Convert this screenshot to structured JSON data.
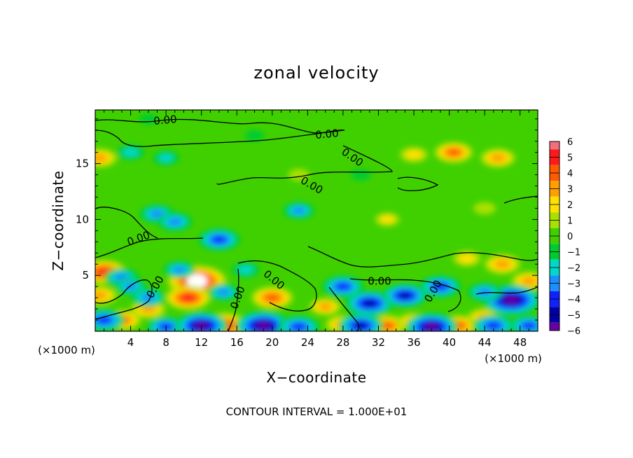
{
  "chart_data": {
    "type": "heatmap",
    "title": "zonal velocity",
    "xlabel": "X−coordinate",
    "ylabel": "Z−coordinate",
    "x_unit_left": "(×1000 m)",
    "x_unit_right": "(×1000 m)",
    "xlim": [
      0,
      50
    ],
    "ylim": [
      0,
      19.8
    ],
    "xticks": [
      4,
      8,
      12,
      16,
      20,
      24,
      28,
      32,
      36,
      40,
      44,
      48
    ],
    "yticks": [
      5,
      10,
      15
    ],
    "colorbar": {
      "ticks": [
        6,
        5,
        4,
        3,
        2,
        1,
        0,
        -1,
        -2,
        -3,
        -4,
        -5,
        -6
      ],
      "tick_labels": [
        "6",
        "5",
        "4",
        "3",
        "2",
        "1",
        "0",
        "−1",
        "−2",
        "−3",
        "−4",
        "−5",
        "−6"
      ],
      "range": [
        -6,
        6
      ]
    },
    "contour_label": "0.00",
    "footer": "CONTOUR INTERVAL = 1.000E+01",
    "features": [
      {
        "x": 11.5,
        "z": 4.5,
        "u": 6.5
      },
      {
        "x": 10.5,
        "z": 3.0,
        "u": 4.5
      },
      {
        "x": 14.5,
        "z": 0.5,
        "u": 5.0
      },
      {
        "x": 20.0,
        "z": 3.0,
        "u": 4.0
      },
      {
        "x": 6.0,
        "z": 2.0,
        "u": 3.0
      },
      {
        "x": 1.0,
        "z": 5.3,
        "u": 4.5
      },
      {
        "x": 0.5,
        "z": 3.2,
        "u": 3.0
      },
      {
        "x": 3.0,
        "z": 1.0,
        "u": 3.5
      },
      {
        "x": 20.0,
        "z": 0.3,
        "u": 3.5
      },
      {
        "x": 26.0,
        "z": 2.2,
        "u": 2.5
      },
      {
        "x": 28.0,
        "z": 0.6,
        "u": 3.0
      },
      {
        "x": 33.0,
        "z": 0.5,
        "u": 3.5
      },
      {
        "x": 36.0,
        "z": 0.8,
        "u": 3.0
      },
      {
        "x": 41.0,
        "z": 0.5,
        "u": 3.5
      },
      {
        "x": 44.0,
        "z": 1.2,
        "u": 3.0
      },
      {
        "x": 46.0,
        "z": 6.0,
        "u": 3.2
      },
      {
        "x": 49.0,
        "z": 4.5,
        "u": 3.0
      },
      {
        "x": 42.0,
        "z": 6.5,
        "u": 2.0
      },
      {
        "x": 40.5,
        "z": 16.0,
        "u": 3.5
      },
      {
        "x": 45.5,
        "z": 15.5,
        "u": 3.0
      },
      {
        "x": 36.0,
        "z": 15.8,
        "u": 2.0
      },
      {
        "x": 0.5,
        "z": 15.5,
        "u": 3.0
      },
      {
        "x": 33.0,
        "z": 10.0,
        "u": 1.5
      },
      {
        "x": 44.0,
        "z": 11.0,
        "u": 1.2
      },
      {
        "x": 23.0,
        "z": 14.0,
        "u": 1.0
      },
      {
        "x": 7.0,
        "z": 10.5,
        "u": -3.0
      },
      {
        "x": 9.0,
        "z": 9.8,
        "u": -3.0
      },
      {
        "x": 14.0,
        "z": 8.2,
        "u": -4.0
      },
      {
        "x": 23.0,
        "z": 10.8,
        "u": -2.5
      },
      {
        "x": 4.0,
        "z": 16.0,
        "u": -2.0
      },
      {
        "x": 8.0,
        "z": 15.5,
        "u": -1.8
      },
      {
        "x": 3.0,
        "z": 4.8,
        "u": -3.0
      },
      {
        "x": 4.0,
        "z": 4.0,
        "u": -2.5
      },
      {
        "x": 6.0,
        "z": 3.0,
        "u": -3.0
      },
      {
        "x": 9.5,
        "z": 5.5,
        "u": -2.5
      },
      {
        "x": 14.5,
        "z": 3.5,
        "u": -2.5
      },
      {
        "x": 17.0,
        "z": 5.5,
        "u": -2.0
      },
      {
        "x": 28.0,
        "z": 4.0,
        "u": -4.0
      },
      {
        "x": 31.0,
        "z": 2.5,
        "u": -5.0
      },
      {
        "x": 35.0,
        "z": 3.2,
        "u": -4.5
      },
      {
        "x": 39.0,
        "z": 4.0,
        "u": -4.0
      },
      {
        "x": 47.0,
        "z": 2.8,
        "u": -6.5
      },
      {
        "x": 44.0,
        "z": 3.5,
        "u": -3.0
      },
      {
        "x": 1.0,
        "z": 1.0,
        "u": -4.0
      },
      {
        "x": 8.0,
        "z": 0.4,
        "u": -3.5
      },
      {
        "x": 12.0,
        "z": 0.5,
        "u": -5.5
      },
      {
        "x": 19.0,
        "z": 0.5,
        "u": -6.0
      },
      {
        "x": 23.0,
        "z": 0.4,
        "u": -4.0
      },
      {
        "x": 30.0,
        "z": 0.5,
        "u": -4.5
      },
      {
        "x": 38.0,
        "z": 0.4,
        "u": -5.5
      },
      {
        "x": 45.0,
        "z": 0.5,
        "u": -4.0
      },
      {
        "x": 49.0,
        "z": 0.5,
        "u": -3.5
      },
      {
        "x": 18.0,
        "z": 17.5,
        "u": -0.8
      },
      {
        "x": 30.0,
        "z": 14.0,
        "u": -0.9
      },
      {
        "x": 6.0,
        "z": 19.0,
        "u": -0.7
      }
    ],
    "colors": {
      "6": "#f07080",
      "5": "#ff1a1a",
      "4": "#ff5a00",
      "3": "#ffa000",
      "2": "#ffe000",
      "1": "#a8e000",
      "0": "#40d000",
      "-1": "#00cc30",
      "-2": "#00d8c8",
      "-3": "#1890ff",
      "-4": "#1020ff",
      "-5": "#0000a8",
      "-6": "#6a00a0"
    }
  }
}
